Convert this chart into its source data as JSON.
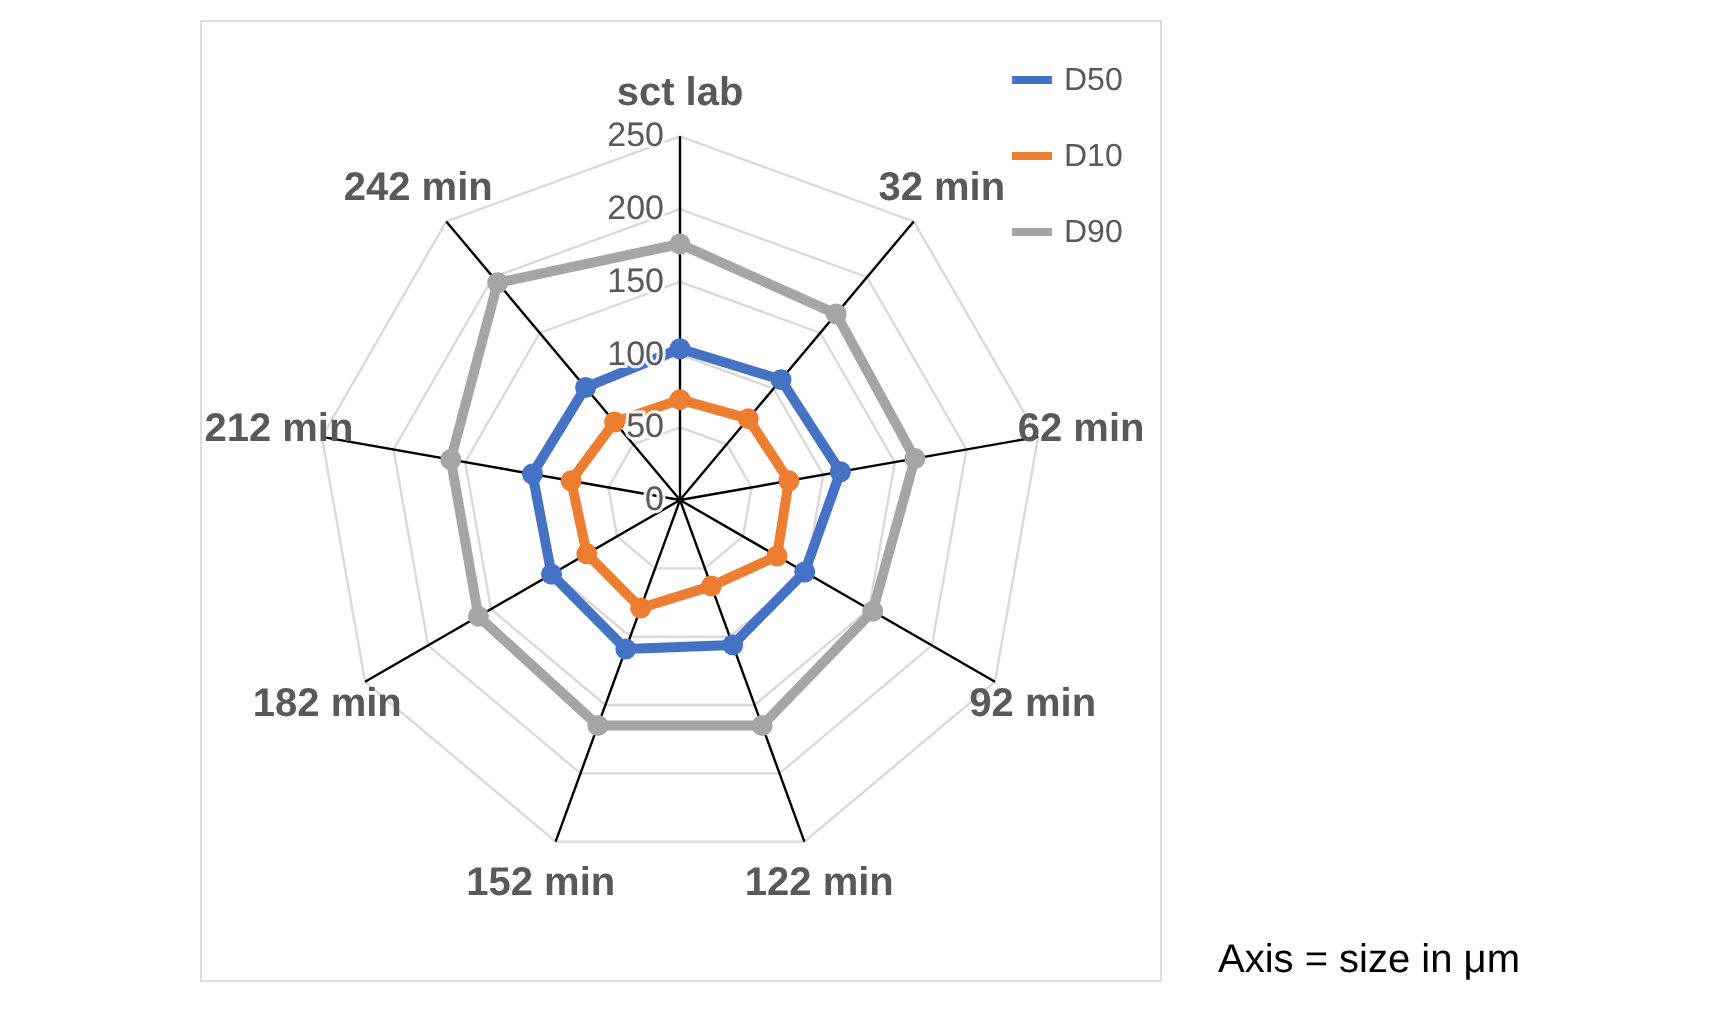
{
  "chart_data": {
    "type": "radar",
    "categories": [
      "sct lab",
      "32 min",
      "62 min",
      "92 min",
      "122 min",
      "152 min",
      "182 min",
      "212 min",
      "242 min"
    ],
    "series": [
      {
        "name": "D50",
        "color": "#4472c4",
        "values": [
          104,
          108,
          112,
          99,
          106,
          109,
          102,
          103,
          101
        ]
      },
      {
        "name": "D10",
        "color": "#ed7d31",
        "values": [
          69,
          73,
          76,
          77,
          63,
          79,
          74,
          76,
          70
        ]
      },
      {
        "name": "D90",
        "color": "#a5a5a5",
        "values": [
          176,
          167,
          164,
          153,
          165,
          165,
          160,
          160,
          195
        ]
      }
    ],
    "ylim": [
      0,
      250
    ],
    "yticks": [
      0,
      50,
      100,
      150,
      200,
      250
    ],
    "grid": true,
    "legend": "top right",
    "marker": "circle",
    "line_style": "solid",
    "annotations": [
      "Axis = size in μm"
    ]
  }
}
